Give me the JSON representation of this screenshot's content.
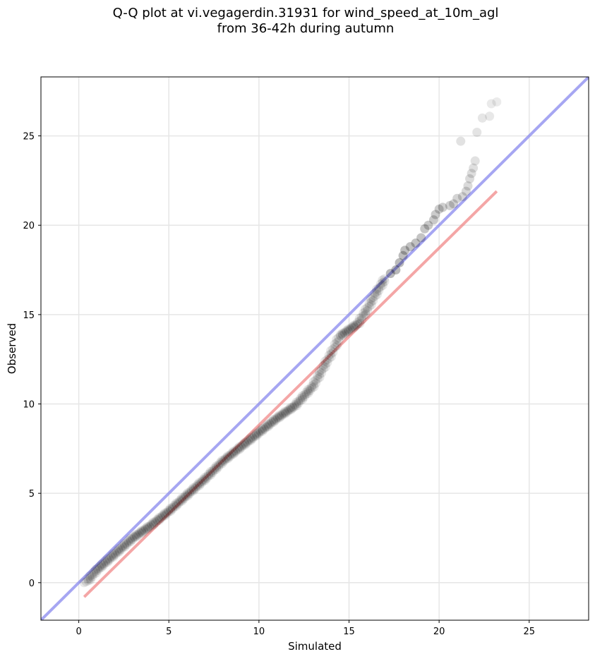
{
  "chart_data": {
    "type": "scatter",
    "title_line1": "Q-Q plot at vi.vegagerdin.31931 for wind_speed_at_10m_agl",
    "title_line2": "from 36-42h during autumn",
    "xlabel": "Simulated",
    "ylabel": "Observed",
    "xlim": [
      -2.1,
      28.3
    ],
    "ylim": [
      -2.1,
      28.3
    ],
    "xticks": [
      0,
      5,
      10,
      15,
      20,
      25
    ],
    "yticks": [
      0,
      5,
      10,
      15,
      20,
      25
    ],
    "grid": true,
    "identity_line": {
      "color": "#8888ee",
      "label": "1:1"
    },
    "fit_line": {
      "color": "#f08080",
      "x": [
        0.3,
        23.2
      ],
      "y": [
        -0.8,
        21.9
      ]
    },
    "series": [
      {
        "color": "#000000",
        "dense_band": [
          [
            0.4,
            0.0
          ],
          [
            1.0,
            0.7
          ],
          [
            2.0,
            1.6
          ],
          [
            3.0,
            2.5
          ],
          [
            4.0,
            3.2
          ],
          [
            5.0,
            4.0
          ],
          [
            6.0,
            4.9
          ],
          [
            7.0,
            5.8
          ],
          [
            8.0,
            6.8
          ],
          [
            9.0,
            7.6
          ],
          [
            10.0,
            8.4
          ],
          [
            11.0,
            9.2
          ],
          [
            12.0,
            9.9
          ],
          [
            13.0,
            11.0
          ],
          [
            14.0,
            12.8
          ],
          [
            14.5,
            13.8
          ],
          [
            15.5,
            14.5
          ],
          [
            16.0,
            15.3
          ],
          [
            16.5,
            16.2
          ],
          [
            17.0,
            17.0
          ]
        ],
        "tail_points": [
          [
            17.3,
            17.3
          ],
          [
            17.6,
            17.5
          ],
          [
            17.8,
            17.9
          ],
          [
            18.0,
            18.3
          ],
          [
            18.1,
            18.6
          ],
          [
            18.4,
            18.8
          ],
          [
            18.7,
            19.0
          ],
          [
            19.0,
            19.3
          ],
          [
            19.2,
            19.8
          ],
          [
            19.4,
            20.0
          ],
          [
            19.7,
            20.3
          ],
          [
            19.8,
            20.6
          ],
          [
            20.0,
            20.9
          ],
          [
            20.2,
            21.0
          ],
          [
            20.6,
            21.1
          ],
          [
            20.8,
            21.2
          ],
          [
            21.0,
            21.5
          ],
          [
            21.3,
            21.6
          ],
          [
            21.5,
            21.9
          ],
          [
            21.6,
            22.2
          ],
          [
            21.7,
            22.6
          ],
          [
            21.8,
            22.9
          ],
          [
            21.9,
            23.2
          ],
          [
            22.0,
            23.6
          ],
          [
            21.2,
            24.7
          ],
          [
            22.1,
            25.2
          ],
          [
            22.4,
            26.0
          ],
          [
            22.8,
            26.1
          ],
          [
            22.9,
            26.8
          ],
          [
            23.2,
            26.9
          ]
        ]
      }
    ]
  }
}
